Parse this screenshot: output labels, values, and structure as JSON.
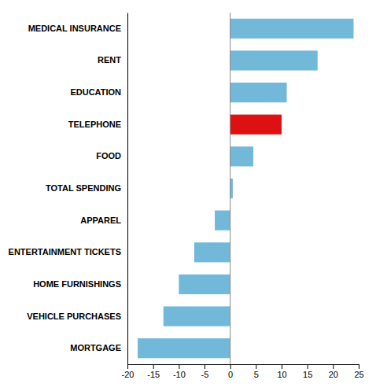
{
  "chart_data": {
    "type": "bar",
    "orientation": "horizontal",
    "categories": [
      "MEDICAL INSURANCE",
      "RENT",
      "EDUCATION",
      "TELEPHONE",
      "FOOD",
      "TOTAL SPENDING",
      "APPAREL",
      "ENTERTAINMENT TICKETS",
      "HOME FURNISHINGS",
      "VEHICLE PURCHASES",
      "MORTGAGE"
    ],
    "values": [
      24,
      17,
      11,
      10,
      4.5,
      0.5,
      -3,
      -7,
      -10,
      -13,
      -18
    ],
    "colors": [
      "#72b8d8",
      "#72b8d8",
      "#72b8d8",
      "#dd1111",
      "#72b8d8",
      "#72b8d8",
      "#72b8d8",
      "#72b8d8",
      "#72b8d8",
      "#72b8d8",
      "#72b8d8"
    ],
    "xlim": [
      -20,
      25
    ],
    "xticks": [
      -20,
      -15,
      -10,
      -5,
      0,
      5,
      10,
      15,
      20,
      25
    ],
    "grid": false
  }
}
